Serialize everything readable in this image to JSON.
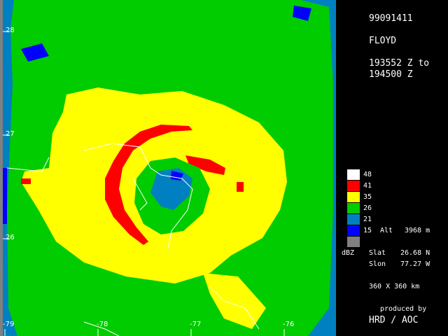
{
  "header": {
    "date_code": "99091411",
    "storm_name": "FLOYD",
    "time_from": "193552 Z to",
    "time_to": "194500 Z"
  },
  "legend": {
    "items": [
      {
        "value": "48",
        "color": "#ffffff"
      },
      {
        "value": "41",
        "color": "#ff0000"
      },
      {
        "value": "35",
        "color": "#ffff00"
      },
      {
        "value": "26",
        "color": "#00cc00"
      },
      {
        "value": "21",
        "color": "#0080c0"
      },
      {
        "value": "15",
        "color": "#0000ff"
      },
      {
        "value": "",
        "color": "#808080"
      }
    ],
    "alt_label": "Alt",
    "alt_value": "3968 m",
    "unit": "dBZ"
  },
  "center": {
    "slat_label": "Slat",
    "slat_value": "26.68 N",
    "slon_label": "Slon",
    "slon_value": "77.27 W"
  },
  "domain_size": "360 X 360 km",
  "credits": {
    "line1": "produced by",
    "line2": "HRD / AOC"
  },
  "axes": {
    "lat_ticks": [
      "28",
      "27",
      "26"
    ],
    "lon_ticks": [
      "-79",
      "-78",
      "-77",
      "-76"
    ]
  }
}
